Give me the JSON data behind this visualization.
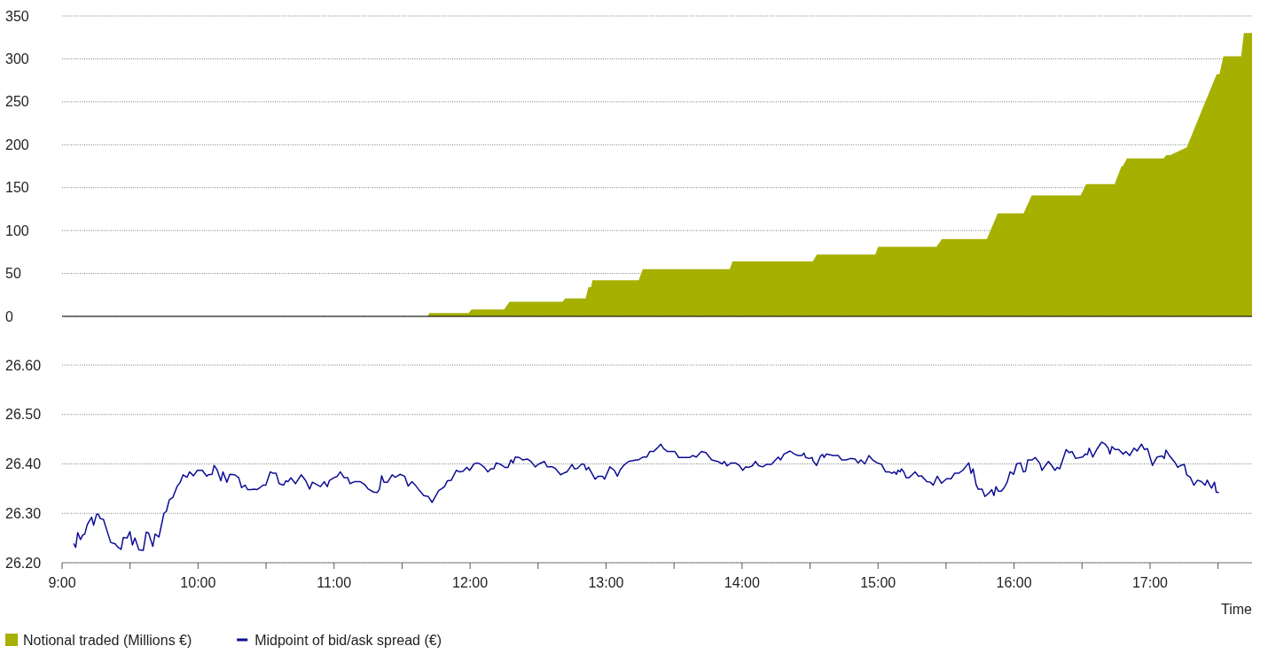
{
  "chart_data": [
    {
      "type": "area",
      "xlim": [
        9,
        17.75
      ],
      "ylim": [
        0,
        350
      ],
      "yticks": [
        0,
        50,
        100,
        150,
        200,
        250,
        300,
        350
      ],
      "grid": "y",
      "tick_labels": "y",
      "legend": "bottom",
      "series": [
        {
          "name": "Notional traded (Millions €)",
          "color": "#a6b000",
          "x": [
            9,
            11.69,
            11.7,
            11.99,
            12.01,
            12.25,
            12.29,
            12.68,
            12.7,
            12.85,
            12.87,
            12.89,
            12.9,
            13.24,
            13.27,
            13.91,
            13.93,
            14.52,
            14.55,
            14.98,
            15,
            15.43,
            15.47,
            15.8,
            15.88,
            16.07,
            16.13,
            16.49,
            16.53,
            16.74,
            16.79,
            16.8,
            16.83,
            17.1,
            17.12,
            17.15,
            17.27,
            17.37,
            17.49,
            17.51,
            17.54,
            17.67,
            17.69,
            17.75
          ],
          "values": [
            0,
            0,
            4,
            4,
            8,
            8,
            17,
            17,
            21,
            21,
            34,
            34,
            42,
            42,
            55,
            55,
            64,
            64,
            72,
            72,
            81,
            81,
            90,
            90,
            120,
            120,
            141,
            141,
            154,
            154,
            175,
            175,
            184,
            184,
            188,
            188,
            197,
            236,
            282,
            282,
            303,
            303,
            330,
            330
          ]
        }
      ]
    },
    {
      "type": "line",
      "xlim": [
        9,
        17.75
      ],
      "ylim": [
        26.2,
        26.6
      ],
      "yticks": [
        {
          "value": 26.2,
          "label": "26.20"
        },
        {
          "value": 26.3,
          "label": "26.30"
        },
        {
          "value": 26.4,
          "label": "26.40"
        },
        {
          "value": 26.5,
          "label": "26.50"
        },
        {
          "value": 26.6,
          "label": "26.60"
        }
      ],
      "grid": "y",
      "legend": "bottom",
      "xlabel": "Time",
      "xticks": [
        {
          "value": 9,
          "label": "9:00"
        },
        {
          "value": 9.5,
          "label": null
        },
        {
          "value": 10,
          "label": "10:00"
        },
        {
          "value": 10.5,
          "label": null
        },
        {
          "value": 11,
          "label": "11:00"
        },
        {
          "value": 11.5,
          "label": null
        },
        {
          "value": 12,
          "label": "12:00"
        },
        {
          "value": 12.5,
          "label": null
        },
        {
          "value": 13,
          "label": "13:00"
        },
        {
          "value": 13.5,
          "label": null
        },
        {
          "value": 14,
          "label": "14:00"
        },
        {
          "value": 14.5,
          "label": null
        },
        {
          "value": 15,
          "label": "15:00"
        },
        {
          "value": 15.5,
          "label": null
        },
        {
          "value": 16,
          "label": "16:00"
        },
        {
          "value": 16.5,
          "label": null
        },
        {
          "value": 17,
          "label": "17:00"
        },
        {
          "value": 17.5,
          "label": null
        }
      ],
      "series": [
        {
          "name": "Midpoint of bid/ask spread (€)",
          "color": "#0c0c94",
          "x": [
            9.087,
            9.1,
            9.115,
            9.135,
            9.152,
            9.167,
            9.185,
            9.217,
            9.232,
            9.254,
            9.267,
            9.282,
            9.304,
            9.337,
            9.358,
            9.391,
            9.408,
            9.434,
            9.45,
            9.478,
            9.499,
            9.517,
            9.536,
            9.565,
            9.597,
            9.619,
            9.636,
            9.667,
            9.684,
            9.712,
            9.749,
            9.767,
            9.788,
            9.814,
            9.847,
            9.869,
            9.89,
            9.919,
            9.938,
            9.966,
            9.995,
            10.031,
            10.064,
            10.075,
            10.103,
            10.118,
            10.14,
            10.168,
            10.183,
            10.212,
            10.233,
            10.27,
            10.299,
            10.32,
            10.346,
            10.364,
            10.39,
            10.412,
            10.433,
            10.455,
            10.477,
            10.498,
            10.531,
            10.553,
            10.574,
            10.596,
            10.629,
            10.646,
            10.661,
            10.683,
            10.716,
            10.759,
            10.792,
            10.82,
            10.841,
            10.9,
            10.928,
            10.95,
            10.965,
            10.998,
            11.024,
            11.046,
            11.074,
            11.1,
            11.117,
            11.15,
            11.193,
            11.226,
            11.252,
            11.291,
            11.317,
            11.334,
            11.35,
            11.367,
            11.393,
            11.428,
            11.45,
            11.486,
            11.519,
            11.545,
            11.573,
            11.595,
            11.628,
            11.66,
            11.693,
            11.721,
            11.769,
            11.797,
            11.812,
            11.834,
            11.862,
            11.899,
            11.921,
            11.949,
            11.975,
            11.997,
            12.029,
            12.051,
            12.073,
            12.105,
            12.131,
            12.153,
            12.175,
            12.192,
            12.225,
            12.257,
            12.279,
            12.301,
            12.316,
            12.333,
            12.362,
            12.388,
            12.42,
            12.448,
            12.479,
            12.507,
            12.546,
            12.568,
            12.605,
            12.626,
            12.666,
            12.692,
            12.713,
            12.75,
            12.768,
            12.789,
            12.822,
            12.839,
            12.854,
            12.872,
            12.92,
            12.941,
            12.974,
            12.989,
            13.028,
            13.061,
            13.083,
            13.104,
            13.13,
            13.165,
            13.224,
            13.235,
            13.274,
            13.3,
            13.321,
            13.35,
            13.376,
            13.402,
            13.423,
            13.452,
            13.506,
            13.534,
            13.614,
            13.636,
            13.664,
            13.701,
            13.734,
            13.777,
            13.821,
            13.853,
            13.869,
            13.89,
            13.919,
            13.951,
            13.979,
            14.005,
            14.027,
            14.049,
            14.075,
            14.099,
            14.12,
            14.151,
            14.179,
            14.216,
            14.266,
            14.283,
            14.309,
            14.353,
            14.385,
            14.411,
            14.44,
            14.455,
            14.468,
            14.494,
            14.516,
            14.522,
            14.548,
            14.577,
            14.592,
            14.603,
            14.62,
            14.668,
            14.707,
            14.733,
            14.765,
            14.798,
            14.831,
            14.853,
            14.874,
            14.903,
            14.933,
            14.961,
            14.994,
            15.026,
            15.055,
            15.081,
            15.102,
            15.12,
            15.135,
            15.146,
            15.163,
            15.172,
            15.189,
            15.207,
            15.228,
            15.25,
            15.272,
            15.298,
            15.319,
            15.359,
            15.385,
            15.406,
            15.435,
            15.467,
            15.504,
            15.537,
            15.563,
            15.591,
            15.623,
            15.667,
            15.684,
            15.699,
            15.721,
            15.736,
            15.765,
            15.786,
            15.819,
            15.836,
            15.852,
            15.867,
            15.884,
            15.906,
            15.928,
            15.949,
            15.971,
            15.997,
            16.019,
            16.047,
            16.069,
            16.084,
            16.101,
            16.134,
            16.155,
            16.188,
            16.205,
            16.231,
            16.253,
            16.279,
            16.301,
            16.318,
            16.336,
            16.383,
            16.405,
            16.427,
            16.453,
            16.503,
            16.525,
            16.54,
            16.553,
            16.579,
            16.612,
            16.644,
            16.67,
            16.692,
            16.705,
            16.72,
            16.742,
            16.77,
            16.803,
            16.822,
            16.85,
            16.883,
            16.905,
            16.937,
            16.959,
            16.981,
            17.018,
            17.052,
            17.089,
            17.104,
            17.117,
            17.144,
            17.183,
            17.204,
            17.226,
            17.252,
            17.27,
            17.296,
            17.322,
            17.35,
            17.378,
            17.404,
            17.421,
            17.437,
            17.452,
            17.474,
            17.487,
            17.502
          ],
          "values": [
            26.238,
            26.231,
            26.261,
            26.247,
            26.256,
            26.258,
            26.277,
            26.292,
            26.276,
            26.298,
            26.298,
            26.289,
            26.288,
            26.259,
            26.241,
            26.238,
            26.232,
            26.227,
            26.251,
            26.25,
            26.263,
            26.236,
            26.25,
            26.226,
            26.225,
            26.262,
            26.26,
            26.233,
            26.258,
            26.252,
            26.3,
            26.304,
            26.327,
            26.332,
            26.355,
            26.363,
            26.378,
            26.373,
            26.384,
            26.376,
            26.387,
            26.387,
            26.375,
            26.378,
            26.379,
            26.397,
            26.388,
            26.366,
            26.384,
            26.363,
            26.379,
            26.378,
            26.372,
            26.352,
            26.357,
            26.348,
            26.348,
            26.349,
            26.348,
            26.352,
            26.357,
            26.357,
            26.384,
            26.381,
            26.381,
            26.36,
            26.357,
            26.366,
            26.364,
            26.372,
            26.36,
            26.378,
            26.366,
            26.349,
            26.363,
            26.354,
            26.364,
            26.354,
            26.366,
            26.372,
            26.375,
            26.384,
            26.372,
            26.372,
            26.36,
            26.364,
            26.364,
            26.358,
            26.349,
            26.343,
            26.342,
            26.349,
            26.376,
            26.363,
            26.363,
            26.378,
            26.373,
            26.379,
            26.375,
            26.355,
            26.364,
            26.358,
            26.346,
            26.336,
            26.334,
            26.322,
            26.346,
            26.351,
            26.354,
            26.366,
            26.367,
            26.387,
            26.384,
            26.385,
            26.393,
            26.387,
            26.4,
            26.402,
            26.4,
            26.393,
            26.384,
            26.39,
            26.39,
            26.402,
            26.399,
            26.393,
            26.393,
            26.408,
            26.402,
            26.414,
            26.413,
            26.408,
            26.41,
            26.405,
            26.394,
            26.4,
            26.405,
            26.394,
            26.394,
            26.391,
            26.378,
            26.382,
            26.384,
            26.399,
            26.39,
            26.391,
            26.4,
            26.399,
            26.388,
            26.393,
            26.369,
            26.375,
            26.375,
            26.369,
            26.394,
            26.387,
            26.375,
            26.388,
            26.397,
            26.405,
            26.408,
            26.408,
            26.414,
            26.414,
            26.425,
            26.425,
            26.432,
            26.44,
            26.431,
            26.425,
            26.425,
            26.413,
            26.413,
            26.417,
            26.414,
            26.425,
            26.423,
            26.408,
            26.405,
            26.4,
            26.405,
            26.396,
            26.402,
            26.402,
            26.397,
            26.387,
            26.394,
            26.393,
            26.396,
            26.405,
            26.397,
            26.394,
            26.399,
            26.399,
            26.414,
            26.408,
            26.42,
            26.426,
            26.42,
            26.417,
            26.417,
            26.422,
            26.413,
            26.411,
            26.413,
            26.406,
            26.397,
            26.416,
            26.419,
            26.413,
            26.42,
            26.417,
            26.417,
            26.408,
            26.408,
            26.411,
            26.41,
            26.402,
            26.408,
            26.4,
            26.417,
            26.408,
            26.402,
            26.399,
            26.384,
            26.384,
            26.381,
            26.384,
            26.379,
            26.387,
            26.384,
            26.39,
            26.384,
            26.372,
            26.372,
            26.378,
            26.384,
            26.375,
            26.376,
            26.364,
            26.363,
            26.357,
            26.375,
            26.361,
            26.37,
            26.37,
            26.381,
            26.381,
            26.387,
            26.402,
            26.381,
            26.39,
            26.358,
            26.349,
            26.349,
            26.334,
            26.342,
            26.348,
            26.336,
            26.354,
            26.345,
            26.345,
            26.352,
            26.363,
            26.384,
            26.379,
            26.4,
            26.402,
            26.384,
            26.385,
            26.408,
            26.408,
            26.413,
            26.402,
            26.387,
            26.397,
            26.405,
            26.396,
            26.387,
            26.393,
            26.39,
            26.429,
            26.423,
            26.425,
            26.411,
            26.414,
            26.42,
            26.419,
            26.432,
            26.414,
            26.431,
            26.444,
            26.44,
            26.432,
            26.42,
            26.435,
            26.429,
            26.429,
            26.42,
            26.425,
            26.417,
            26.432,
            26.426,
            26.44,
            26.429,
            26.431,
            26.397,
            26.414,
            26.416,
            26.411,
            26.428,
            26.416,
            26.403,
            26.393,
            26.397,
            26.399,
            26.378,
            26.373,
            26.357,
            26.367,
            26.364,
            26.357,
            26.367,
            26.358,
            26.351,
            26.363,
            26.343,
            26.342
          ]
        }
      ]
    }
  ]
}
